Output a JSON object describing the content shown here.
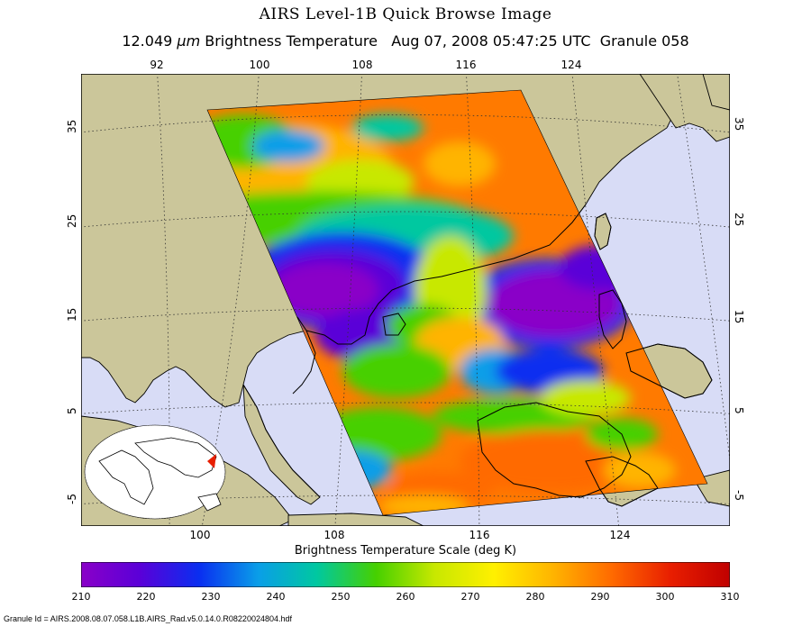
{
  "title": "AIRS Level-1B Quick Browse Image",
  "subtitle": {
    "wavelength_value": "12.049",
    "wavelength_unit": "μm",
    "quantity": "Brightness Temperature",
    "datetime": "Aug 07, 2008 05:47:25 UTC",
    "granule": "Granule 058"
  },
  "map": {
    "top_lon_labels": [
      "92",
      "100",
      "108",
      "116",
      "124"
    ],
    "bottom_lon_labels": [
      "100",
      "108",
      "116",
      "124"
    ],
    "left_lat_labels": [
      "35",
      "25",
      "15",
      "5",
      "-5"
    ],
    "right_lat_labels": [
      "35",
      "25",
      "15",
      "5",
      "-5"
    ],
    "colors": {
      "ocean": "#d8dcf6",
      "land": "#cbc69a",
      "coast": "#000000",
      "grid": "#333333"
    }
  },
  "colorbar": {
    "title": "Brightness Temperature Scale (deg K)",
    "min": 210,
    "max": 310,
    "ticks": [
      "210",
      "220",
      "230",
      "240",
      "250",
      "260",
      "270",
      "280",
      "290",
      "300",
      "310"
    ],
    "colors": [
      "#8a00c8",
      "#5a00d8",
      "#0a2ef0",
      "#0a9ee8",
      "#00c8a0",
      "#46d000",
      "#c8e800",
      "#fff000",
      "#ffb400",
      "#ff6a00",
      "#e81e00",
      "#c00000"
    ]
  },
  "footer": {
    "granule_id": "Granule Id = AIRS.2008.08.07.058.L1B.AIRS_Rad.v5.0.14.0.R08220024804.hdf"
  }
}
